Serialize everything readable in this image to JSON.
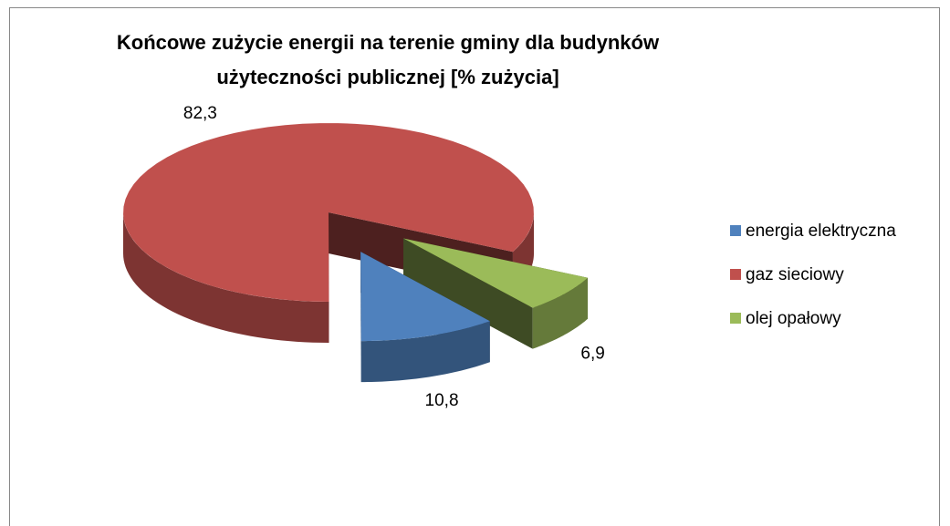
{
  "chart_data": {
    "type": "pie3d",
    "title": "Końcowe zużycie energii na terenie gminy dla budynków użyteczności publicznej [% zużycia]",
    "categories": [
      "energia elektryczna",
      "gaz sieciowy",
      "olej opałowy"
    ],
    "values": [
      10.8,
      82.3,
      6.9
    ],
    "value_labels": [
      "10,8",
      "82,3",
      "6,9"
    ],
    "colors": [
      "#4f81bd",
      "#c0504d",
      "#9bbb59"
    ],
    "legend": "right"
  }
}
